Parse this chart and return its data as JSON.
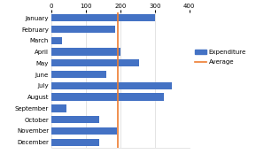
{
  "months": [
    "January",
    "February",
    "March",
    "April",
    "May",
    "June",
    "July",
    "August",
    "September",
    "October",
    "November",
    "December"
  ],
  "values": [
    300,
    185,
    30,
    200,
    255,
    160,
    350,
    325,
    45,
    140,
    190,
    140
  ],
  "average": 193,
  "bar_color": "#4472C4",
  "avg_line_color": "#ED7D31",
  "xlim": [
    0,
    400
  ],
  "xticks": [
    0,
    100,
    200,
    300,
    400
  ],
  "bg_color": "#FFFFFF",
  "legend_labels": [
    "Expenditure",
    "Average"
  ],
  "grid_color": "#D9D9D9",
  "bar_height": 0.65
}
